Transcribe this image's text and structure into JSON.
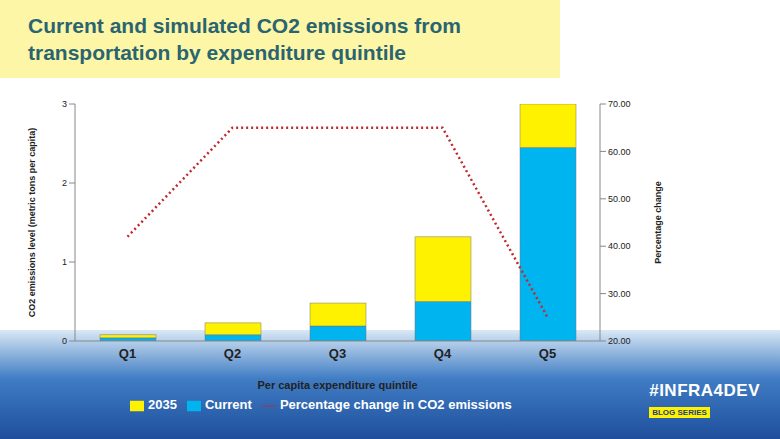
{
  "chart_data": {
    "type": "bar",
    "title": "Current and simulated CO2 emissions from transportation by expenditure quintile",
    "x_label": "Per capita expenditure quintile",
    "y_label": "CO2 emissions level (metric tons per capita)",
    "y2_label": "Percentage change",
    "categories": [
      "Q1",
      "Q2",
      "Q3",
      "Q4",
      "Q5"
    ],
    "series": [
      {
        "name": "Current",
        "type": "bar",
        "color": "#00b4ef",
        "values": [
          0.04,
          0.08,
          0.19,
          0.5,
          2.45
        ]
      },
      {
        "name": "2035",
        "type": "bar",
        "color": "#fff200",
        "values": [
          0.04,
          0.15,
          0.29,
          0.82,
          0.55
        ]
      },
      {
        "name": "Percentage change in CO2 emissions",
        "type": "line",
        "axis": "y2",
        "color": "#c0282d",
        "line_style": "dotted",
        "values": [
          42,
          65,
          65,
          65,
          25
        ]
      }
    ],
    "stacked": true,
    "grid": false,
    "legend": "bottom",
    "ylim": [
      0,
      3
    ],
    "yticks": [
      0,
      1,
      2,
      3
    ],
    "y2lim": [
      20,
      70
    ],
    "y2ticks": [
      {
        "value": 20,
        "label": "20.00"
      },
      {
        "value": 30,
        "label": "30.00"
      },
      {
        "value": 40,
        "label": "40.00"
      },
      {
        "value": 50,
        "label": "50.00"
      },
      {
        "value": 60,
        "label": "60.00"
      },
      {
        "value": 70,
        "label": "70.00"
      }
    ],
    "annotations": [
      "#INFRA4DEV",
      "BLOG SERIES"
    ]
  }
}
